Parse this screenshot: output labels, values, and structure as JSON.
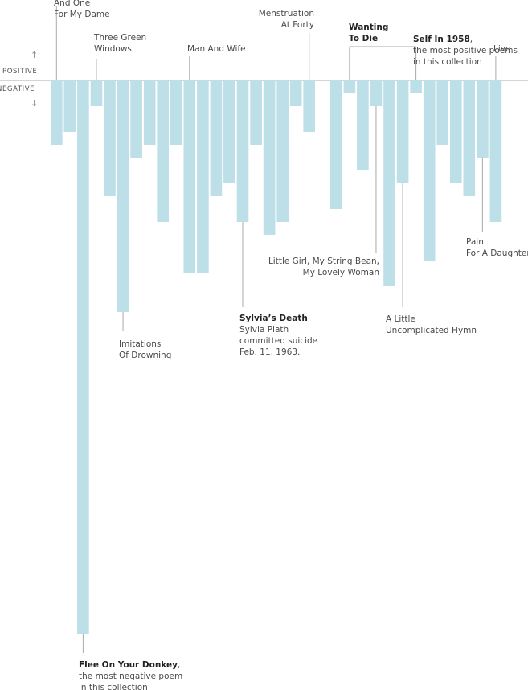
{
  "legend": {
    "positive": "POSITIVE",
    "negative": "NEGATIVE",
    "up_arrow": "↑",
    "down_arrow": "↓"
  },
  "chart_data": {
    "type": "bar",
    "ylabel_positive": "POSITIVE",
    "ylabel_negative": "NEGATIVE",
    "values": [
      -5,
      -4,
      -43,
      -2,
      -9,
      -18,
      -6,
      -5,
      -11,
      -5,
      -15,
      -15,
      -9,
      -8,
      -11,
      -5,
      -12,
      -11,
      -2,
      -4,
      -10,
      -1,
      -7,
      -2,
      -16,
      -8,
      -1,
      -14,
      -5,
      -8,
      -9,
      -6,
      -11
    ],
    "color": "#bcdfe8",
    "baseline_color": "#aaaaaa",
    "annotations": [
      {
        "title": "",
        "lines": [
          "And One",
          "For My Dame"
        ]
      },
      {
        "title": "",
        "lines": [
          "Three Green",
          "Windows"
        ]
      },
      {
        "title": "",
        "lines": [
          "Imitations",
          "Of Drowning"
        ]
      },
      {
        "title": "",
        "lines": [
          "Man And Wife"
        ]
      },
      {
        "title": "",
        "lines": [
          "Menstruation",
          "At Forty"
        ]
      },
      {
        "title": "Sylvia’s Death",
        "lines": [
          "Sylvia Plath",
          "committed suicide",
          "Feb. 11, 1963."
        ]
      },
      {
        "title": "Flee On Your Donkey",
        "suffix": ",",
        "lines": [
          "the most negative poem",
          "in this collection"
        ]
      },
      {
        "title": "Wanting",
        "lines": [
          "To Die"
        ],
        "bold_all": true
      },
      {
        "title": "Self In 1958",
        "suffix": ",",
        "lines": [
          "the most positive poems",
          "in this collection"
        ]
      },
      {
        "title": "",
        "lines": [
          "Little Girl, My String Bean,",
          "My Lovely Woman"
        ]
      },
      {
        "title": "",
        "lines": [
          "A Little",
          "Uncomplicated Hymn"
        ]
      },
      {
        "title": "",
        "lines": [
          "Pain",
          "For A Daughter"
        ]
      },
      {
        "title": "",
        "lines": [
          "Live"
        ]
      }
    ]
  }
}
